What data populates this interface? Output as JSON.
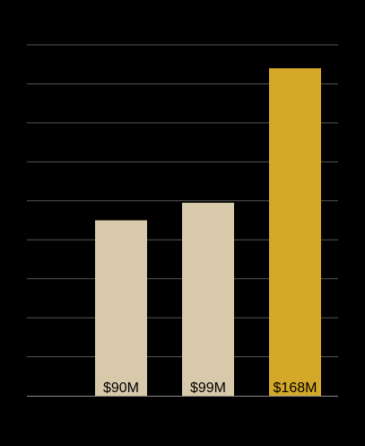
{
  "chart_data": {
    "type": "bar",
    "categories": [
      "",
      "",
      ""
    ],
    "values": [
      90,
      99,
      168
    ],
    "data_labels": [
      "$90M",
      "$99M",
      "$168M"
    ],
    "title": "",
    "xlabel": "",
    "ylabel": "",
    "ylim": [
      0,
      180
    ],
    "grid": true,
    "legend": "none",
    "colors": {
      "background": "#000000",
      "gridline": "#555555",
      "baseline": "#8c8c8c",
      "bars": [
        "#d8c9aa",
        "#d8c9aa",
        "#d4a829"
      ],
      "label_text": "#000000"
    }
  }
}
